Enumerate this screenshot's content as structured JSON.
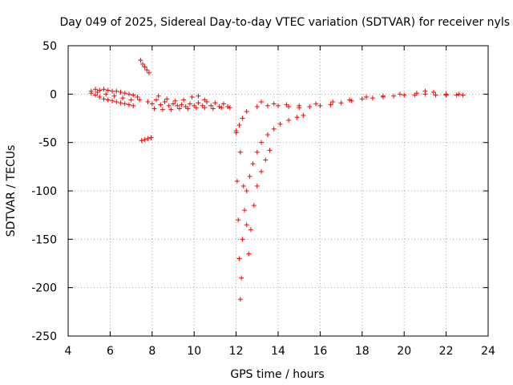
{
  "chart_data": {
    "type": "scatter",
    "title": "Day 049 of 2025, Sidereal Day-to-day VTEC variation (SDTVAR) for receiver nyls",
    "xlabel": "GPS time / hours",
    "ylabel": "SDTVAR / TECUs",
    "xlim": [
      4,
      24
    ],
    "ylim": [
      -250,
      50
    ],
    "xticks": [
      "4",
      "6",
      "8",
      "10",
      "12",
      "14",
      "16",
      "18",
      "20",
      "22",
      "24"
    ],
    "yticks": [
      "50",
      "0",
      "-50",
      "-100",
      "-150",
      "-200",
      "-250"
    ],
    "grid": true,
    "marker": "+",
    "color": "#ff0000",
    "series": [
      {
        "name": "early-cluster-upper",
        "points": [
          [
            5.1,
            3
          ],
          [
            5.3,
            5
          ],
          [
            5.5,
            4
          ],
          [
            5.7,
            5
          ],
          [
            5.9,
            4
          ],
          [
            6.1,
            3
          ],
          [
            6.3,
            3
          ],
          [
            6.5,
            2
          ],
          [
            6.7,
            1
          ],
          [
            6.9,
            0
          ],
          [
            7.1,
            -1
          ],
          [
            7.3,
            -3
          ]
        ]
      },
      {
        "name": "early-cluster-lower",
        "points": [
          [
            5.1,
            1
          ],
          [
            5.3,
            -1
          ],
          [
            5.5,
            -3
          ],
          [
            5.7,
            -5
          ],
          [
            5.9,
            -6
          ],
          [
            6.1,
            -7
          ],
          [
            6.3,
            -8
          ],
          [
            6.5,
            -9
          ],
          [
            6.7,
            -10
          ],
          [
            6.9,
            -11
          ],
          [
            7.1,
            -12
          ]
        ]
      },
      {
        "name": "early-cluster-mid",
        "points": [
          [
            5.4,
            2
          ],
          [
            5.8,
            0
          ],
          [
            6.2,
            -2
          ],
          [
            6.6,
            -4
          ],
          [
            7.0,
            -6
          ],
          [
            7.4,
            -6
          ],
          [
            7.8,
            -8
          ]
        ]
      },
      {
        "name": "rising-arc",
        "points": [
          [
            7.45,
            35
          ],
          [
            7.55,
            31
          ],
          [
            7.65,
            28
          ],
          [
            7.75,
            25
          ],
          [
            7.85,
            22
          ]
        ]
      },
      {
        "name": "low-segment",
        "points": [
          [
            7.5,
            -48
          ],
          [
            7.65,
            -47
          ],
          [
            7.8,
            -46
          ],
          [
            7.95,
            -45
          ]
        ]
      },
      {
        "name": "morning-band-1",
        "points": [
          [
            8.0,
            -10
          ],
          [
            8.4,
            -11
          ],
          [
            8.8,
            -12
          ],
          [
            9.2,
            -12
          ],
          [
            9.6,
            -13
          ],
          [
            10.0,
            -12
          ],
          [
            10.4,
            -12
          ],
          [
            10.8,
            -12
          ],
          [
            11.2,
            -13
          ],
          [
            11.6,
            -13
          ]
        ]
      },
      {
        "name": "morning-band-2",
        "points": [
          [
            8.1,
            -15
          ],
          [
            8.5,
            -16
          ],
          [
            8.9,
            -16
          ],
          [
            9.3,
            -15
          ],
          [
            9.7,
            -15
          ],
          [
            10.1,
            -14
          ],
          [
            10.5,
            -14
          ],
          [
            10.9,
            -15
          ],
          [
            11.3,
            -14
          ],
          [
            11.7,
            -14
          ]
        ]
      },
      {
        "name": "morning-band-3",
        "points": [
          [
            8.2,
            -6
          ],
          [
            8.6,
            -8
          ],
          [
            9.0,
            -10
          ],
          [
            9.4,
            -11
          ],
          [
            9.8,
            -10
          ],
          [
            10.2,
            -9
          ],
          [
            10.6,
            -8
          ],
          [
            11.0,
            -9
          ],
          [
            11.4,
            -10
          ]
        ]
      },
      {
        "name": "morning-peak",
        "points": [
          [
            8.3,
            -2
          ],
          [
            8.7,
            -5
          ],
          [
            9.1,
            -7
          ],
          [
            9.5,
            -6
          ],
          [
            9.9,
            -3
          ],
          [
            10.2,
            -2
          ],
          [
            10.5,
            -6
          ]
        ]
      },
      {
        "name": "trough-inner",
        "points": [
          [
            12.0,
            -40
          ],
          [
            12.05,
            -90
          ],
          [
            12.1,
            -130
          ],
          [
            12.15,
            -170
          ],
          [
            12.2,
            -212
          ],
          [
            12.25,
            -190
          ],
          [
            12.3,
            -150
          ],
          [
            12.4,
            -120
          ],
          [
            12.5,
            -100
          ],
          [
            12.65,
            -85
          ],
          [
            12.8,
            -72
          ],
          [
            13.0,
            -60
          ],
          [
            13.2,
            -50
          ],
          [
            13.5,
            -42
          ],
          [
            13.8,
            -36
          ],
          [
            14.1,
            -31
          ],
          [
            14.5,
            -27
          ],
          [
            14.9,
            -24
          ],
          [
            15.2,
            -22
          ]
        ]
      },
      {
        "name": "trough-outer",
        "points": [
          [
            12.2,
            -60
          ],
          [
            12.35,
            -95
          ],
          [
            12.5,
            -135
          ],
          [
            12.6,
            -165
          ],
          [
            12.7,
            -140
          ],
          [
            12.85,
            -115
          ],
          [
            13.0,
            -95
          ],
          [
            13.2,
            -80
          ],
          [
            13.4,
            -68
          ],
          [
            13.6,
            -58
          ]
        ]
      },
      {
        "name": "trough-entry",
        "points": [
          [
            12.0,
            -38
          ],
          [
            12.15,
            -32
          ],
          [
            12.3,
            -25
          ],
          [
            12.5,
            -18
          ]
        ]
      },
      {
        "name": "afternoon-band",
        "points": [
          [
            13.0,
            -13
          ],
          [
            13.5,
            -12
          ],
          [
            14.0,
            -12
          ],
          [
            14.5,
            -13
          ],
          [
            15.0,
            -14
          ],
          [
            15.5,
            -13
          ],
          [
            16.0,
            -12
          ],
          [
            16.5,
            -11
          ],
          [
            17.0,
            -9
          ],
          [
            17.5,
            -7
          ],
          [
            18.0,
            -5
          ],
          [
            18.5,
            -4
          ],
          [
            19.0,
            -3
          ],
          [
            19.5,
            -2
          ],
          [
            20.0,
            -1
          ],
          [
            20.5,
            -1
          ],
          [
            21.0,
            0
          ],
          [
            21.5,
            -1
          ],
          [
            22.0,
            -1
          ],
          [
            22.5,
            -1
          ],
          [
            22.8,
            -1
          ]
        ]
      },
      {
        "name": "afternoon-band-upper",
        "points": [
          [
            13.2,
            -8
          ],
          [
            13.8,
            -10
          ],
          [
            14.4,
            -11
          ],
          [
            15.0,
            -12
          ],
          [
            15.8,
            -10
          ],
          [
            16.6,
            -8
          ],
          [
            17.4,
            -6
          ],
          [
            18.2,
            -3
          ],
          [
            19.0,
            -2
          ],
          [
            19.8,
            0
          ],
          [
            20.6,
            1
          ],
          [
            21.0,
            3
          ],
          [
            21.4,
            2
          ],
          [
            22.0,
            0
          ],
          [
            22.6,
            0
          ]
        ]
      }
    ]
  }
}
